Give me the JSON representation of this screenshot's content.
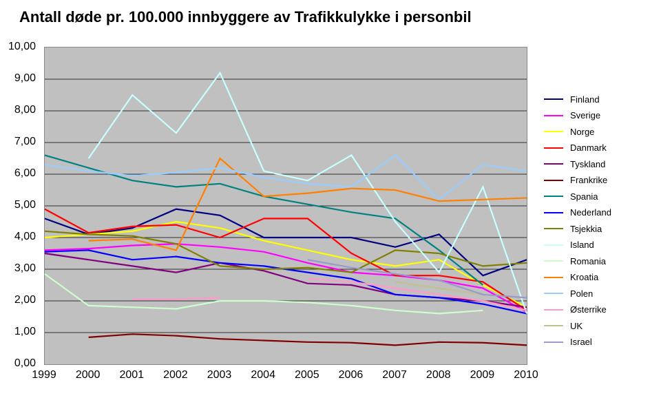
{
  "title": "Antall døde pr. 100.000 innbyggere av Trafikkulykke i personbil",
  "chart": {
    "type": "line",
    "background_color": "#c0c0c0",
    "page_bg": "#ffffff",
    "title_fontsize": 22,
    "label_fontsize": 16,
    "legend_fontsize": 13,
    "x_labels": [
      "1999",
      "2000",
      "2001",
      "2002",
      "2003",
      "2004",
      "2005",
      "2006",
      "2007",
      "2008",
      "2009",
      "2010"
    ],
    "y_labels": [
      "0,00",
      "1,00",
      "2,00",
      "3,00",
      "4,00",
      "5,00",
      "6,00",
      "7,00",
      "8,00",
      "9,00",
      "10,00"
    ],
    "ylim": [
      0,
      10
    ],
    "grid_color": "#000000",
    "line_width": 2.2,
    "series": [
      {
        "name": "Finland",
        "color": "#000080",
        "values": [
          4.6,
          4.1,
          4.3,
          4.9,
          4.7,
          4.0,
          4.0,
          4.0,
          3.7,
          4.1,
          2.8,
          3.3
        ]
      },
      {
        "name": "Sverige",
        "color": "#ff00ff",
        "values": [
          3.6,
          3.65,
          3.75,
          3.8,
          3.7,
          3.55,
          3.2,
          2.9,
          2.8,
          2.65,
          2.4,
          1.65
        ]
      },
      {
        "name": "Norge",
        "color": "#ffff00",
        "values": [
          4.0,
          4.1,
          4.2,
          4.5,
          4.3,
          3.9,
          3.6,
          3.3,
          3.1,
          3.3,
          2.5,
          1.8
        ]
      },
      {
        "name": "Danmark",
        "color": "#ff0000",
        "values": [
          4.9,
          4.15,
          4.35,
          4.4,
          4.0,
          4.6,
          4.6,
          3.5,
          2.8,
          2.8,
          2.6,
          1.7
        ]
      },
      {
        "name": "Tyskland",
        "color": "#800080",
        "values": [
          3.5,
          3.3,
          3.1,
          2.9,
          3.2,
          2.95,
          2.55,
          2.5,
          2.2,
          2.1,
          2.0,
          1.8
        ]
      },
      {
        "name": "Frankrike",
        "color": "#800000",
        "values": [
          null,
          0.85,
          0.95,
          0.9,
          0.8,
          0.75,
          0.7,
          0.68,
          0.6,
          0.7,
          0.68,
          0.6
        ]
      },
      {
        "name": "Spania",
        "color": "#008080",
        "values": [
          6.6,
          6.2,
          5.8,
          5.6,
          5.7,
          5.3,
          5.05,
          4.8,
          4.6,
          3.6,
          2.5,
          null
        ]
      },
      {
        "name": "Nederland",
        "color": "#0000ff",
        "values": [
          3.55,
          3.6,
          3.3,
          3.4,
          3.2,
          3.1,
          2.9,
          2.7,
          2.2,
          2.1,
          1.9,
          1.6
        ]
      },
      {
        "name": "Tsjekkia",
        "color": "#808000",
        "values": [
          4.2,
          4.1,
          4.05,
          3.8,
          3.1,
          3.0,
          3.05,
          2.9,
          3.6,
          3.5,
          3.1,
          3.2
        ]
      },
      {
        "name": "Island",
        "color": "#c8ffff",
        "values": [
          null,
          6.5,
          8.5,
          7.3,
          9.2,
          6.1,
          5.8,
          6.6,
          4.5,
          2.9,
          5.6,
          1.6
        ]
      },
      {
        "name": "Romania",
        "color": "#ccffcc",
        "values": [
          2.85,
          1.85,
          1.8,
          1.75,
          2.0,
          2.0,
          1.95,
          1.85,
          1.7,
          1.6,
          1.7,
          null
        ]
      },
      {
        "name": "Kroatia",
        "color": "#ff8000",
        "values": [
          null,
          3.9,
          3.95,
          3.6,
          6.5,
          5.3,
          5.4,
          5.55,
          5.5,
          5.15,
          5.2,
          5.25
        ]
      },
      {
        "name": "Polen",
        "color": "#99ccff",
        "values": [
          6.3,
          6.1,
          5.95,
          6.05,
          6.2,
          5.9,
          5.7,
          5.6,
          6.6,
          5.2,
          6.3,
          6.1
        ]
      },
      {
        "name": "Østerrike",
        "color": "#ff99cc",
        "values": [
          null,
          null,
          2.05,
          2.05,
          2.1,
          null,
          2.7,
          2.6,
          2.4,
          2.2,
          2.0,
          1.7
        ]
      },
      {
        "name": "UK",
        "color": "#c0c090",
        "values": [
          null,
          null,
          null,
          null,
          null,
          null,
          null,
          null,
          2.6,
          2.4,
          2.2,
          null
        ]
      },
      {
        "name": "Israel",
        "color": "#9999cc",
        "values": [
          null,
          null,
          null,
          null,
          null,
          null,
          3.3,
          3.05,
          2.85,
          2.65,
          2.2,
          2.1
        ]
      }
    ]
  }
}
